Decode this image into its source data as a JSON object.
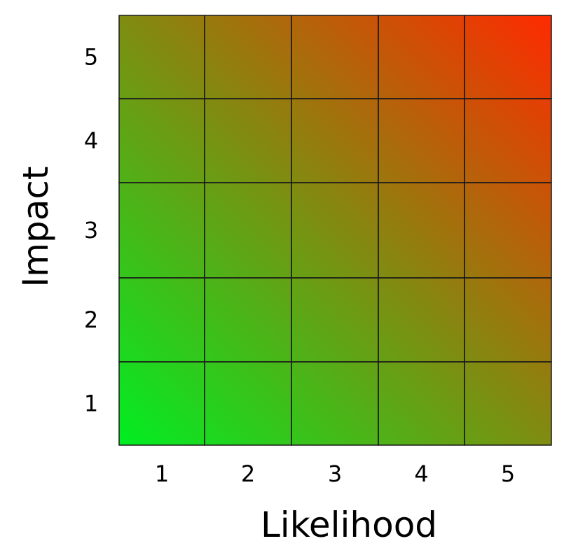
{
  "chart_data": {
    "type": "heatmap",
    "title": "",
    "xlabel": "Likelihood",
    "ylabel": "Impact",
    "x_categories": [
      "1",
      "2",
      "3",
      "4",
      "5"
    ],
    "y_categories": [
      "1",
      "2",
      "3",
      "4",
      "5"
    ],
    "colors": {
      "low": "#00ee22",
      "high": "#ff2a00",
      "grid": "#1a1a1a"
    }
  }
}
